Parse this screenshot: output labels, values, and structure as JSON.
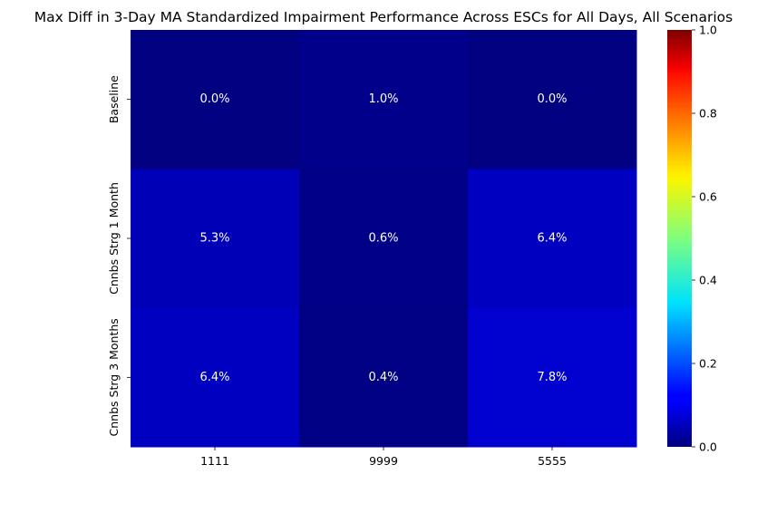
{
  "chart_data": {
    "type": "heatmap",
    "title": "Max Diff in 3-Day MA Standardized Impairment Performance Across ESCs for All Days, All Scenarios",
    "xlabel": "",
    "ylabel": "",
    "x_categories": [
      "1111",
      "9999",
      "5555"
    ],
    "y_categories": [
      "Baseline",
      "Cnnbs Strg 1 Month",
      "Cnnbs Strg 3 Months"
    ],
    "values": [
      [
        0.0,
        0.01,
        0.0
      ],
      [
        0.053,
        0.006,
        0.064
      ],
      [
        0.064,
        0.004,
        0.078
      ]
    ],
    "annotations": [
      [
        "0.0%",
        "1.0%",
        "0.0%"
      ],
      [
        "5.3%",
        "0.6%",
        "6.4%"
      ],
      [
        "6.4%",
        "0.4%",
        "7.8%"
      ]
    ],
    "colormap": "jet",
    "colorbar": {
      "range": [
        0,
        1
      ],
      "ticks": [
        "0.0",
        "0.2",
        "0.4",
        "0.6",
        "0.8",
        "1.0"
      ]
    }
  }
}
